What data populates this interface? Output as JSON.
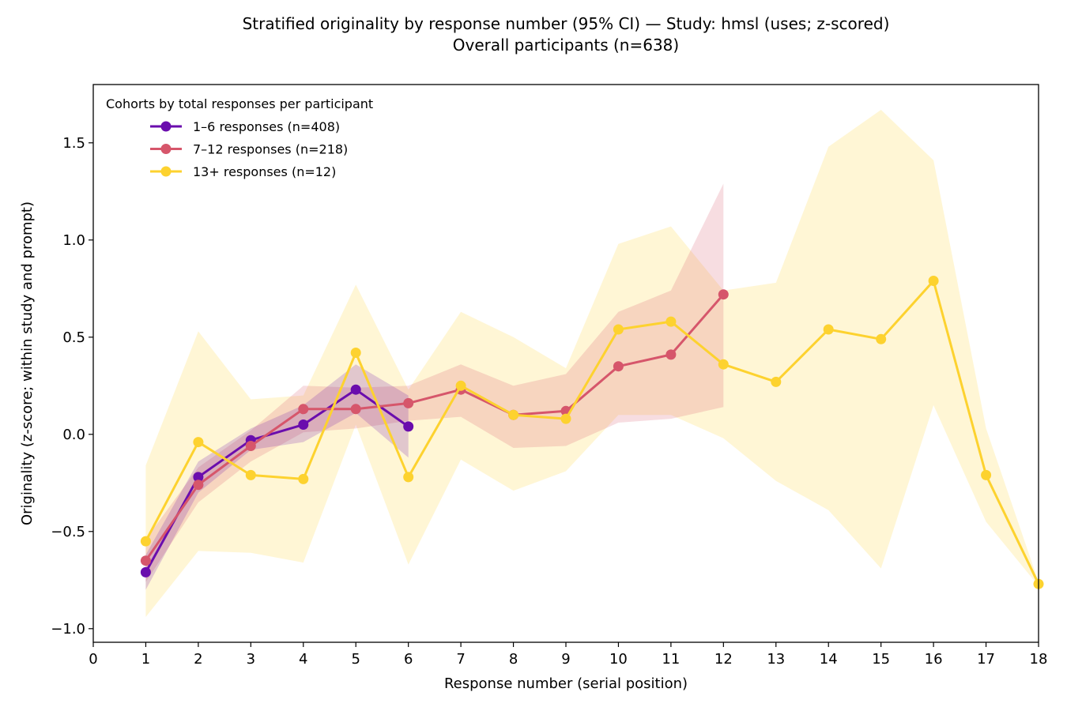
{
  "chart_data": {
    "type": "line",
    "title": "Stratified originality by response number (95% CI) — Study: hmsl (uses; z-scored)",
    "subtitle": "Overall participants (n=638)",
    "xlabel": "Response number (serial position)",
    "ylabel": "Originality (z-score; within study and prompt)",
    "xlim": [
      0,
      18
    ],
    "ylim": [
      -1.07,
      1.8
    ],
    "xticks": [
      "0",
      "1",
      "2",
      "3",
      "4",
      "5",
      "6",
      "7",
      "8",
      "9",
      "10",
      "11",
      "12",
      "13",
      "14",
      "15",
      "16",
      "17",
      "18"
    ],
    "yticks": [
      {
        "value": -1.0,
        "label": "−1.0"
      },
      {
        "value": -0.5,
        "label": "−0.5"
      },
      {
        "value": 0.0,
        "label": "0.0"
      },
      {
        "value": 0.5,
        "label": "0.5"
      },
      {
        "value": 1.0,
        "label": "1.0"
      },
      {
        "value": 1.5,
        "label": "1.5"
      }
    ],
    "grid": false,
    "legend": {
      "title": "Cohorts by total responses per participant",
      "placement": "top-left"
    },
    "series": [
      {
        "name": "1–6 responses (n=408)",
        "color": "#6a0dad",
        "x": [
          1,
          2,
          3,
          4,
          5,
          6
        ],
        "y": [
          -0.71,
          -0.22,
          -0.03,
          0.05,
          0.23,
          0.04
        ],
        "ci_low": [
          -0.8,
          -0.3,
          -0.08,
          -0.04,
          0.11,
          -0.12
        ],
        "ci_high": [
          -0.62,
          -0.14,
          0.03,
          0.15,
          0.36,
          0.2
        ]
      },
      {
        "name": "7–12 responses (n=218)",
        "color": "#d6566b",
        "x": [
          1,
          2,
          3,
          4,
          5,
          6,
          7,
          8,
          9,
          10,
          11,
          12
        ],
        "y": [
          -0.65,
          -0.26,
          -0.06,
          0.13,
          0.13,
          0.16,
          0.23,
          0.1,
          0.12,
          0.35,
          0.41,
          0.72
        ],
        "ci_low": [
          -0.76,
          -0.35,
          -0.14,
          0.01,
          0.03,
          0.07,
          0.09,
          -0.07,
          -0.06,
          0.06,
          0.08,
          0.14
        ],
        "ci_high": [
          -0.54,
          -0.17,
          0.02,
          0.25,
          0.24,
          0.25,
          0.36,
          0.25,
          0.31,
          0.63,
          0.74,
          1.29
        ]
      },
      {
        "name": "13+ responses (n=12)",
        "color": "#fdd22f",
        "x": [
          1,
          2,
          3,
          4,
          5,
          6,
          7,
          8,
          9,
          10,
          11,
          12,
          13,
          14,
          15,
          16,
          17,
          18
        ],
        "y": [
          -0.55,
          -0.04,
          -0.21,
          -0.23,
          0.42,
          -0.22,
          0.25,
          0.1,
          0.08,
          0.54,
          0.58,
          0.36,
          0.27,
          0.54,
          0.49,
          0.79,
          -0.21,
          -0.77
        ],
        "ci_low": [
          -0.94,
          -0.6,
          -0.61,
          -0.66,
          0.05,
          -0.67,
          -0.13,
          -0.29,
          -0.19,
          0.1,
          0.1,
          -0.02,
          -0.24,
          -0.39,
          -0.69,
          0.15,
          -0.45,
          -0.78
        ],
        "ci_high": [
          -0.16,
          0.53,
          0.18,
          0.2,
          0.77,
          0.23,
          0.63,
          0.5,
          0.34,
          0.98,
          1.07,
          0.74,
          0.78,
          1.48,
          1.67,
          1.41,
          0.03,
          -0.76
        ]
      }
    ]
  }
}
